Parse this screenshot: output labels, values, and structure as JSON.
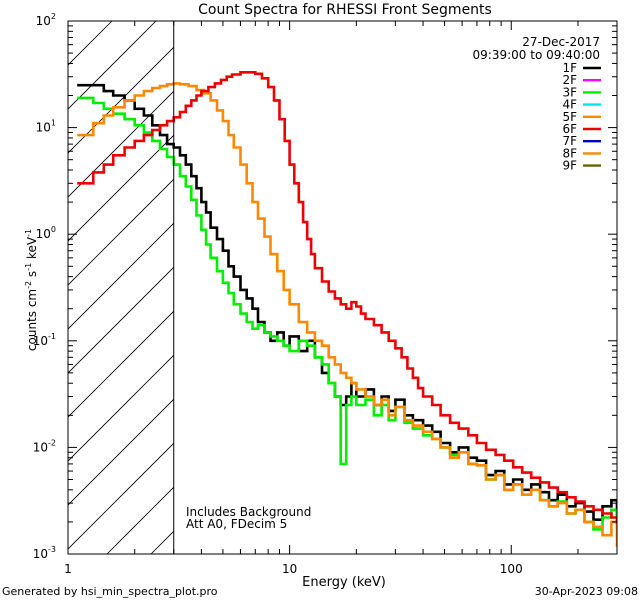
{
  "chart_data": {
    "type": "line",
    "step": true,
    "xscale": "log",
    "yscale": "log",
    "title": "Count Spectra for RHESSI Front Segments",
    "date": "27-Dec-2017",
    "time_range": "09:39:00 to 09:40:00",
    "xlabel": "Energy (keV)",
    "ylabel_parts": {
      "a": "counts cm",
      "b": "-2",
      "c": " s",
      "d": "-1",
      "e": " keV",
      "f": "-1"
    },
    "xlim": [
      1,
      300
    ],
    "ylim": [
      0.001,
      100
    ],
    "x_ticks": [
      {
        "value": 1,
        "label": "1"
      },
      {
        "value": 10,
        "label": "10"
      },
      {
        "value": 100,
        "label": "100"
      }
    ],
    "y_ticks": [
      {
        "value": 0.001,
        "base": "10",
        "exp": "-3"
      },
      {
        "value": 0.01,
        "base": "10",
        "exp": "-2"
      },
      {
        "value": 0.1,
        "base": "10",
        "exp": "-1"
      },
      {
        "value": 1,
        "base": "10",
        "exp": "0"
      },
      {
        "value": 10,
        "base": "10",
        "exp": "1"
      },
      {
        "value": 100,
        "base": "10",
        "exp": "2"
      }
    ],
    "hatched_region": {
      "xmin": 1,
      "xmax": 3
    },
    "annotation_lines": [
      "Includes Background",
      "Att A0, FDecim 5"
    ],
    "footer_left": "Generated by hsi_min_spectra_plot.pro",
    "footer_right": "30-Apr-2023 09:08",
    "legend": [
      {
        "label": "1F",
        "color": "#000000"
      },
      {
        "label": "2F",
        "color": "#ff00ff"
      },
      {
        "label": "3F",
        "color": "#00ee00"
      },
      {
        "label": "4F",
        "color": "#00e5ee"
      },
      {
        "label": "5F",
        "color": "#ff8800"
      },
      {
        "label": "6F",
        "color": "#ee0000"
      },
      {
        "label": "7F",
        "color": "#0000cc"
      },
      {
        "label": "8F",
        "color": "#ff8800"
      },
      {
        "label": "9F",
        "color": "#666600"
      }
    ],
    "series": [
      {
        "name": "1F",
        "color": "#000000",
        "points": [
          [
            1.1,
            25
          ],
          [
            1.3,
            25
          ],
          [
            1.45,
            22
          ],
          [
            1.6,
            20
          ],
          [
            1.8,
            18
          ],
          [
            2.0,
            15
          ],
          [
            2.2,
            13
          ],
          [
            2.4,
            10.5
          ],
          [
            2.6,
            8.5
          ],
          [
            2.8,
            7
          ],
          [
            3.0,
            6.5
          ],
          [
            3.2,
            5.5
          ],
          [
            3.4,
            4.5
          ],
          [
            3.6,
            3.5
          ],
          [
            3.8,
            2.7
          ],
          [
            4.0,
            2.0
          ],
          [
            4.2,
            1.6
          ],
          [
            4.4,
            1.15
          ],
          [
            4.7,
            0.9
          ],
          [
            5.0,
            0.7
          ],
          [
            5.3,
            0.5
          ],
          [
            5.6,
            0.4
          ],
          [
            6.0,
            0.3
          ],
          [
            6.4,
            0.25
          ],
          [
            6.8,
            0.2
          ],
          [
            7.2,
            0.15
          ],
          [
            7.7,
            0.12
          ],
          [
            8.2,
            0.1
          ],
          [
            8.8,
            0.12
          ],
          [
            9.4,
            0.09
          ],
          [
            10,
            0.11
          ],
          [
            11,
            0.08
          ],
          [
            12,
            0.1
          ],
          [
            13,
            0.07
          ],
          [
            14,
            0.05
          ],
          [
            15,
            0.04
          ],
          [
            16,
            0.03
          ],
          [
            17,
            0.025
          ],
          [
            18,
            0.03
          ],
          [
            19,
            0.04
          ],
          [
            20,
            0.03
          ],
          [
            22,
            0.035
          ],
          [
            24,
            0.025
          ],
          [
            26,
            0.03
          ],
          [
            28,
            0.022
          ],
          [
            30,
            0.028
          ],
          [
            33,
            0.02
          ],
          [
            36,
            0.018
          ],
          [
            40,
            0.016
          ],
          [
            44,
            0.014
          ],
          [
            48,
            0.011
          ],
          [
            53,
            0.009
          ],
          [
            58,
            0.01
          ],
          [
            64,
            0.008
          ],
          [
            70,
            0.0075
          ],
          [
            77,
            0.0055
          ],
          [
            85,
            0.006
          ],
          [
            93,
            0.0045
          ],
          [
            102,
            0.005
          ],
          [
            112,
            0.004
          ],
          [
            123,
            0.0045
          ],
          [
            135,
            0.0038
          ],
          [
            148,
            0.0032
          ],
          [
            162,
            0.0036
          ],
          [
            178,
            0.0028
          ],
          [
            195,
            0.003
          ],
          [
            214,
            0.0025
          ],
          [
            235,
            0.0021
          ],
          [
            258,
            0.0028
          ],
          [
            283,
            0.0032
          ],
          [
            300,
            0.0022
          ]
        ]
      },
      {
        "name": "3F",
        "color": "#00ee00",
        "points": [
          [
            1.1,
            19
          ],
          [
            1.3,
            17
          ],
          [
            1.45,
            15
          ],
          [
            1.6,
            13.5
          ],
          [
            1.8,
            12
          ],
          [
            2.0,
            10.5
          ],
          [
            2.2,
            9
          ],
          [
            2.4,
            7.5
          ],
          [
            2.6,
            6.3
          ],
          [
            2.8,
            5.3
          ],
          [
            3.0,
            4.5
          ],
          [
            3.2,
            3.5
          ],
          [
            3.4,
            2.8
          ],
          [
            3.6,
            2.1
          ],
          [
            3.8,
            1.5
          ],
          [
            4.0,
            1.1
          ],
          [
            4.2,
            0.8
          ],
          [
            4.4,
            0.6
          ],
          [
            4.7,
            0.45
          ],
          [
            5.0,
            0.35
          ],
          [
            5.3,
            0.28
          ],
          [
            5.6,
            0.22
          ],
          [
            6.0,
            0.18
          ],
          [
            6.4,
            0.15
          ],
          [
            6.8,
            0.13
          ],
          [
            7.2,
            0.14
          ],
          [
            7.7,
            0.12
          ],
          [
            8.2,
            0.11
          ],
          [
            8.8,
            0.1
          ],
          [
            9.4,
            0.09
          ],
          [
            10,
            0.08
          ],
          [
            11,
            0.1
          ],
          [
            12,
            0.09
          ],
          [
            13,
            0.07
          ],
          [
            14,
            0.06
          ],
          [
            15,
            0.04
          ],
          [
            16,
            0.03
          ],
          [
            17,
            0.007
          ],
          [
            18,
            0.025
          ],
          [
            19,
            0.03
          ],
          [
            20,
            0.025
          ],
          [
            22,
            0.028
          ],
          [
            24,
            0.02
          ],
          [
            26,
            0.025
          ],
          [
            28,
            0.018
          ],
          [
            30,
            0.024
          ],
          [
            33,
            0.017
          ],
          [
            36,
            0.015
          ],
          [
            40,
            0.013
          ],
          [
            44,
            0.012
          ],
          [
            48,
            0.01
          ],
          [
            53,
            0.0085
          ],
          [
            58,
            0.009
          ],
          [
            64,
            0.007
          ],
          [
            70,
            0.0068
          ],
          [
            77,
            0.005
          ],
          [
            85,
            0.0055
          ],
          [
            93,
            0.004
          ],
          [
            102,
            0.0045
          ],
          [
            112,
            0.0036
          ],
          [
            123,
            0.004
          ],
          [
            135,
            0.0032
          ],
          [
            148,
            0.0028
          ],
          [
            162,
            0.0031
          ],
          [
            178,
            0.0024
          ],
          [
            195,
            0.0026
          ],
          [
            214,
            0.002
          ],
          [
            235,
            0.0017
          ],
          [
            258,
            0.0022
          ],
          [
            283,
            0.0026
          ],
          [
            300,
            0.0018
          ]
        ]
      },
      {
        "name": "5F",
        "color": "#ff8800",
        "points": [
          [
            1.1,
            8.5
          ],
          [
            1.3,
            11
          ],
          [
            1.45,
            13
          ],
          [
            1.6,
            15.5
          ],
          [
            1.8,
            18
          ],
          [
            2.0,
            20
          ],
          [
            2.2,
            22
          ],
          [
            2.4,
            23.5
          ],
          [
            2.6,
            24.5
          ],
          [
            2.8,
            25.5
          ],
          [
            3.0,
            26
          ],
          [
            3.2,
            25.5
          ],
          [
            3.5,
            24.5
          ],
          [
            3.8,
            22.5
          ],
          [
            4.1,
            21
          ],
          [
            4.4,
            18
          ],
          [
            4.7,
            14.5
          ],
          [
            5.0,
            11.5
          ],
          [
            5.3,
            8.5
          ],
          [
            5.6,
            6.5
          ],
          [
            6.0,
            4.5
          ],
          [
            6.4,
            3
          ],
          [
            6.8,
            2
          ],
          [
            7.2,
            1.4
          ],
          [
            7.7,
            0.95
          ],
          [
            8.2,
            0.65
          ],
          [
            8.8,
            0.45
          ],
          [
            9.4,
            0.3
          ],
          [
            10,
            0.22
          ],
          [
            11,
            0.15
          ],
          [
            12,
            0.12
          ],
          [
            13,
            0.1
          ],
          [
            14,
            0.09
          ],
          [
            15,
            0.07
          ],
          [
            16,
            0.06
          ],
          [
            17,
            0.05
          ],
          [
            18,
            0.045
          ],
          [
            19,
            0.04
          ],
          [
            20,
            0.035
          ],
          [
            22,
            0.03
          ],
          [
            24,
            0.025
          ],
          [
            26,
            0.028
          ],
          [
            28,
            0.02
          ],
          [
            30,
            0.024
          ],
          [
            33,
            0.018
          ],
          [
            36,
            0.016
          ],
          [
            40,
            0.014
          ],
          [
            44,
            0.012
          ],
          [
            48,
            0.01
          ],
          [
            53,
            0.008
          ],
          [
            58,
            0.009
          ],
          [
            64,
            0.007
          ],
          [
            70,
            0.0068
          ],
          [
            77,
            0.005
          ],
          [
            85,
            0.0055
          ],
          [
            93,
            0.004
          ],
          [
            102,
            0.0045
          ],
          [
            112,
            0.0036
          ],
          [
            123,
            0.004
          ],
          [
            135,
            0.0032
          ],
          [
            148,
            0.0028
          ],
          [
            162,
            0.003
          ],
          [
            178,
            0.0024
          ],
          [
            195,
            0.0026
          ],
          [
            214,
            0.002
          ],
          [
            235,
            0.0018
          ],
          [
            258,
            0.0015
          ],
          [
            283,
            0.002
          ],
          [
            300,
            0.0012
          ]
        ]
      },
      {
        "name": "6F",
        "color": "#ee0000",
        "points": [
          [
            1.1,
            3
          ],
          [
            1.3,
            3.8
          ],
          [
            1.45,
            4.5
          ],
          [
            1.6,
            5.5
          ],
          [
            1.8,
            6.5
          ],
          [
            2.0,
            7.5
          ],
          [
            2.2,
            8.5
          ],
          [
            2.4,
            9.5
          ],
          [
            2.6,
            10.5
          ],
          [
            2.8,
            11.5
          ],
          [
            3.0,
            12.5
          ],
          [
            3.2,
            14
          ],
          [
            3.4,
            16
          ],
          [
            3.6,
            18
          ],
          [
            3.8,
            20
          ],
          [
            4.0,
            22
          ],
          [
            4.3,
            24
          ],
          [
            4.6,
            26
          ],
          [
            4.9,
            28
          ],
          [
            5.2,
            30
          ],
          [
            5.5,
            31.5
          ],
          [
            6.0,
            33
          ],
          [
            6.5,
            33
          ],
          [
            7.0,
            32
          ],
          [
            7.5,
            29
          ],
          [
            8.0,
            24
          ],
          [
            8.5,
            18
          ],
          [
            9.0,
            12
          ],
          [
            9.5,
            7.5
          ],
          [
            10,
            4.5
          ],
          [
            10.5,
            3
          ],
          [
            11,
            2
          ],
          [
            11.5,
            1.3
          ],
          [
            12,
            0.9
          ],
          [
            12.5,
            0.65
          ],
          [
            13,
            0.48
          ],
          [
            14,
            0.36
          ],
          [
            15,
            0.29
          ],
          [
            16,
            0.25
          ],
          [
            17,
            0.22
          ],
          [
            18,
            0.2
          ],
          [
            19,
            0.23
          ],
          [
            20,
            0.21
          ],
          [
            21,
            0.18
          ],
          [
            22,
            0.16
          ],
          [
            24,
            0.14
          ],
          [
            26,
            0.12
          ],
          [
            28,
            0.1
          ],
          [
            30,
            0.085
          ],
          [
            32,
            0.07
          ],
          [
            34,
            0.055
          ],
          [
            36,
            0.045
          ],
          [
            38,
            0.036
          ],
          [
            40,
            0.03
          ],
          [
            44,
            0.025
          ],
          [
            48,
            0.02
          ],
          [
            53,
            0.017
          ],
          [
            58,
            0.015
          ],
          [
            64,
            0.013
          ],
          [
            70,
            0.011
          ],
          [
            77,
            0.0095
          ],
          [
            85,
            0.0085
          ],
          [
            93,
            0.0075
          ],
          [
            102,
            0.0065
          ],
          [
            112,
            0.0058
          ],
          [
            123,
            0.0052
          ],
          [
            135,
            0.0047
          ],
          [
            148,
            0.0042
          ],
          [
            162,
            0.0038
          ],
          [
            178,
            0.0034
          ],
          [
            195,
            0.0031
          ],
          [
            214,
            0.0028
          ],
          [
            235,
            0.0026
          ],
          [
            258,
            0.0024
          ],
          [
            283,
            0.0022
          ],
          [
            300,
            0.002
          ]
        ]
      }
    ]
  }
}
